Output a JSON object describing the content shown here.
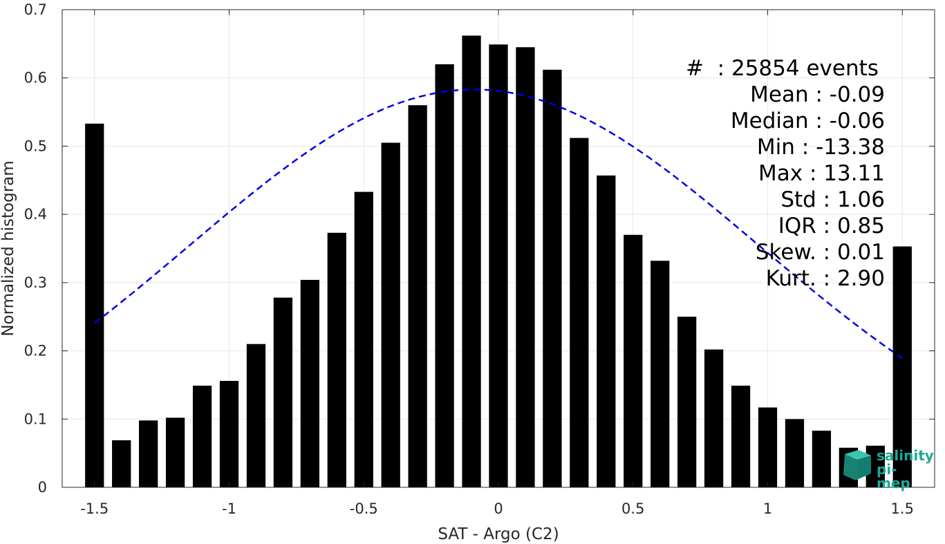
{
  "chart_data": {
    "type": "bar",
    "xlabel": "SAT - Argo (C2)",
    "ylabel": "Normalized histogram",
    "xlim": [
      -1.62,
      1.62
    ],
    "ylim": [
      0,
      0.7
    ],
    "xticks": [
      -1.5,
      -1,
      -0.5,
      0,
      0.5,
      1,
      1.5
    ],
    "xtick_labels": [
      "-1.5",
      "-1",
      "-0.5",
      "0",
      "0.5",
      "1",
      "1.5"
    ],
    "yticks": [
      0,
      0.1,
      0.2,
      0.3,
      0.4,
      0.5,
      0.6,
      0.7
    ],
    "ytick_labels": [
      "0",
      "0.1",
      "0.2",
      "0.3",
      "0.4",
      "0.5",
      "0.6",
      "0.7"
    ],
    "grid": true,
    "bar_color": "#000000",
    "bars": {
      "x": [
        -1.5,
        -1.4,
        -1.3,
        -1.2,
        -1.1,
        -1.0,
        -0.9,
        -0.8,
        -0.7,
        -0.6,
        -0.5,
        -0.4,
        -0.3,
        -0.2,
        -0.1,
        0.0,
        0.1,
        0.2,
        0.3,
        0.4,
        0.5,
        0.6,
        0.7,
        0.8,
        0.9,
        1.0,
        1.1,
        1.2,
        1.3,
        1.4,
        1.5
      ],
      "values": [
        0.533,
        0.069,
        0.098,
        0.102,
        0.149,
        0.156,
        0.21,
        0.278,
        0.304,
        0.373,
        0.433,
        0.505,
        0.56,
        0.62,
        0.662,
        0.649,
        0.645,
        0.612,
        0.512,
        0.457,
        0.37,
        0.332,
        0.25,
        0.202,
        0.149,
        0.117,
        0.1,
        0.083,
        0.058,
        0.061,
        0.353
      ]
    },
    "fit_curve": {
      "style": "dashed",
      "color": "#0000e6",
      "mean": -0.09,
      "std": 1.06,
      "peak": 0.583,
      "x_range": [
        -1.5,
        1.5
      ]
    },
    "stats": [
      "#  : 25854 events",
      "Mean : -0.09",
      "Median : -0.06",
      "Min : -13.38",
      "Max : 13.11",
      "Std : 1.06",
      "IQR : 0.85",
      "Skew. : 0.01",
      "Kurt. : 2.90"
    ]
  },
  "logo": {
    "line1": "salinity",
    "line2": "pi-mep",
    "color": "#1fa898"
  }
}
